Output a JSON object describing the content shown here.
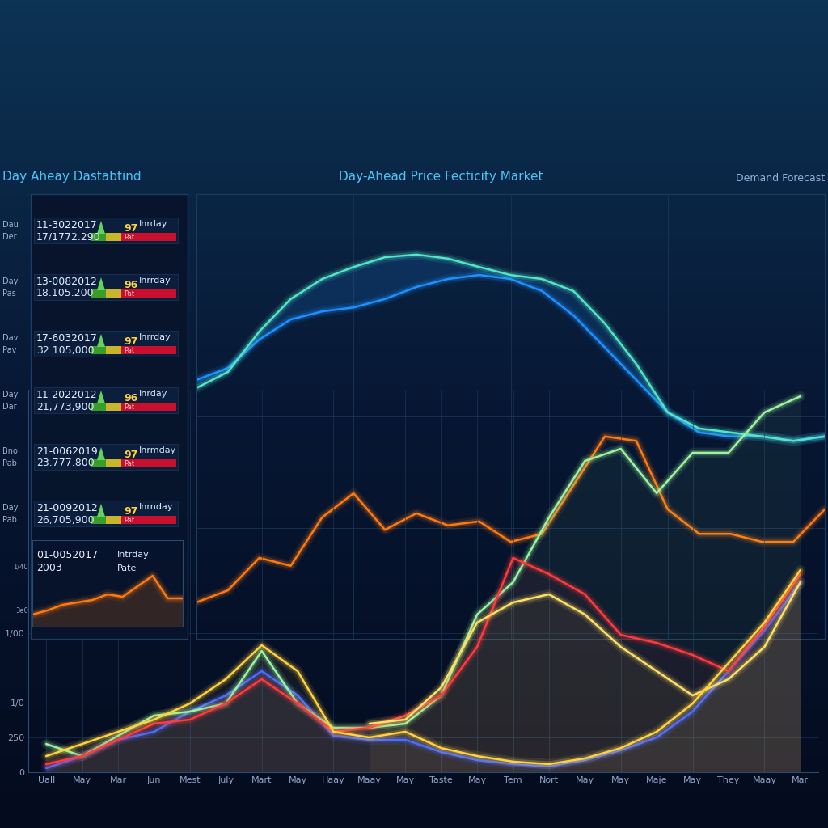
{
  "header": {
    "left": "Day Aheay Dastabtind",
    "right": "Demand Forecast"
  },
  "panel": {
    "rows": [
      {
        "labels": [
          "Dau",
          "Der"
        ],
        "date": "11-3022017",
        "value": "17/1772.290",
        "period": "Inrday",
        "score": 97,
        "status": "Pat"
      },
      {
        "labels": [
          "Day",
          "Pas"
        ],
        "date": "13-0082012",
        "value": "18.105.200",
        "period": "Inrrday",
        "score": 96,
        "status": "Pat"
      },
      {
        "labels": [
          "Dav",
          "Pav"
        ],
        "date": "17-6032017",
        "value": "32.105,000",
        "period": "Inrrday",
        "score": 97,
        "status": "Pat"
      },
      {
        "labels": [
          "Day",
          "Dar"
        ],
        "date": "11-2022012",
        "value": "21,773,900",
        "period": "Inrday",
        "score": 96,
        "status": "Pat"
      },
      {
        "labels": [
          "Bno",
          "Pab"
        ],
        "date": "21-0062019",
        "value": "23.777.800",
        "period": "Inrmday",
        "score": 97,
        "status": "Pat"
      },
      {
        "labels": [
          "Day",
          "Pab"
        ],
        "date": "21-0092012",
        "value": "26,705,900",
        "period": "Inrnday",
        "score": 97,
        "status": "Pat"
      }
    ],
    "mini": {
      "date": "01-0052017",
      "value": "2003",
      "period": "Intrday",
      "status": "Pate"
    }
  },
  "chart_data": [
    {
      "type": "line",
      "title": "Day-Ahead Price Fecticity Market",
      "x": [
        0,
        1,
        2,
        3,
        4,
        5,
        6,
        7,
        8,
        9,
        10,
        11,
        12,
        13,
        14,
        15,
        16,
        17,
        18,
        19,
        20
      ],
      "xlim": [
        0,
        20
      ],
      "xticks": [
        0,
        5,
        10,
        15,
        20
      ],
      "ylim": [
        0,
        100
      ],
      "yticks": [
        0,
        25,
        50,
        75,
        100
      ],
      "grid": true,
      "tick_labels": false,
      "series": [
        {
          "color": "#1e90ff",
          "values": [
            58.2,
            60.9,
            67.3,
            71.8,
            73.6,
            74.5,
            76.4,
            79.1,
            80.9,
            81.8,
            80.9,
            78.2,
            72.7,
            65.5,
            58.2,
            50.9,
            46.4,
            45.5,
            45.5,
            44.5,
            45.5
          ]
        },
        {
          "color": "#52e5c8",
          "values": [
            56.4,
            60.0,
            69.1,
            76.4,
            80.9,
            83.6,
            85.8,
            86.4,
            85.5,
            83.6,
            81.8,
            80.9,
            78.2,
            70.9,
            61.8,
            50.9,
            47.3,
            46.4,
            45.5,
            44.5,
            45.5
          ]
        },
        {
          "color": "#ff7a10",
          "values": [
            8.2,
            10.9,
            18.2,
            16.4,
            27.3,
            32.7,
            24.5,
            28.2,
            25.5,
            26.4,
            21.8,
            23.6,
            34.5,
            45.5,
            44.5,
            29.1,
            23.6,
            23.6,
            21.8,
            21.8,
            29.1
          ]
        }
      ]
    },
    {
      "type": "line",
      "categories": [
        "Uall",
        "May",
        "Mar",
        "Jun",
        "Mest",
        "July",
        "Mart",
        "May",
        "Haay",
        "Maay",
        "May",
        "Taste",
        "May",
        "Tem",
        "Nort",
        "May",
        "May",
        "Maje",
        "May",
        "They",
        "Maay",
        "Mar"
      ],
      "ylim": [
        0,
        2750
      ],
      "yticks": [
        0,
        250,
        {
          "value": 500,
          "label": "1/0"
        },
        {
          "value": 1000,
          "label": "1/00"
        }
      ],
      "grid": true,
      "series": [
        {
          "color": "#4f6bff",
          "values": [
            29,
            116,
            233,
            291,
            436,
            552,
            727,
            552,
            262,
            233,
            233,
            145,
            87,
            58,
            41,
            87,
            157,
            250,
            436,
            727,
            1017,
            1366
          ]
        },
        {
          "color": "#9df5a0",
          "values": [
            203,
            116,
            262,
            407,
            436,
            494,
            872,
            494,
            320,
            320,
            349,
            552,
            1134,
            1366,
            1831,
            2238,
            2326,
            2006,
            2297,
            2297,
            2587,
            2703
          ]
        },
        {
          "color": "#ff3b3b",
          "values": [
            58,
            116,
            233,
            349,
            378,
            494,
            669,
            494,
            291,
            320,
            407,
            552,
            901,
            1541,
            1424,
            1279,
            988,
            930,
            843,
            727,
            1047,
            1424
          ]
        },
        {
          "color": "#ffe066",
          "values": [
            null,
            null,
            null,
            null,
            null,
            null,
            null,
            null,
            null,
            349,
            378,
            610,
            1076,
            1221,
            1279,
            1134,
            901,
            727,
            552,
            669,
            901,
            1366
          ]
        },
        {
          "color": "#ffd23f",
          "values": [
            116,
            203,
            291,
            378,
            494,
            669,
            913,
            727,
            291,
            250,
            291,
            174,
            116,
            76,
            58,
            99,
            174,
            291,
            494,
            785,
            1076,
            1453
          ]
        }
      ]
    },
    {
      "type": "line",
      "x": [
        0,
        1,
        2,
        3,
        4,
        5,
        6,
        7,
        8,
        9,
        10
      ],
      "xlim": [
        0,
        10
      ],
      "xticks": [],
      "ylim": [
        -47,
        220
      ],
      "yticks": [
        {
          "value": 3,
          "label": "3e0"
        },
        {
          "value": 140,
          "label": "1/40"
        }
      ],
      "tick_labels": "y",
      "series": [
        {
          "color": "#ff7a10",
          "values": [
            -9.5,
            3,
            20.4,
            27.9,
            35.4,
            52.8,
            45.3,
            77.7,
            110.1,
            40.4,
            40.4
          ]
        }
      ]
    }
  ]
}
